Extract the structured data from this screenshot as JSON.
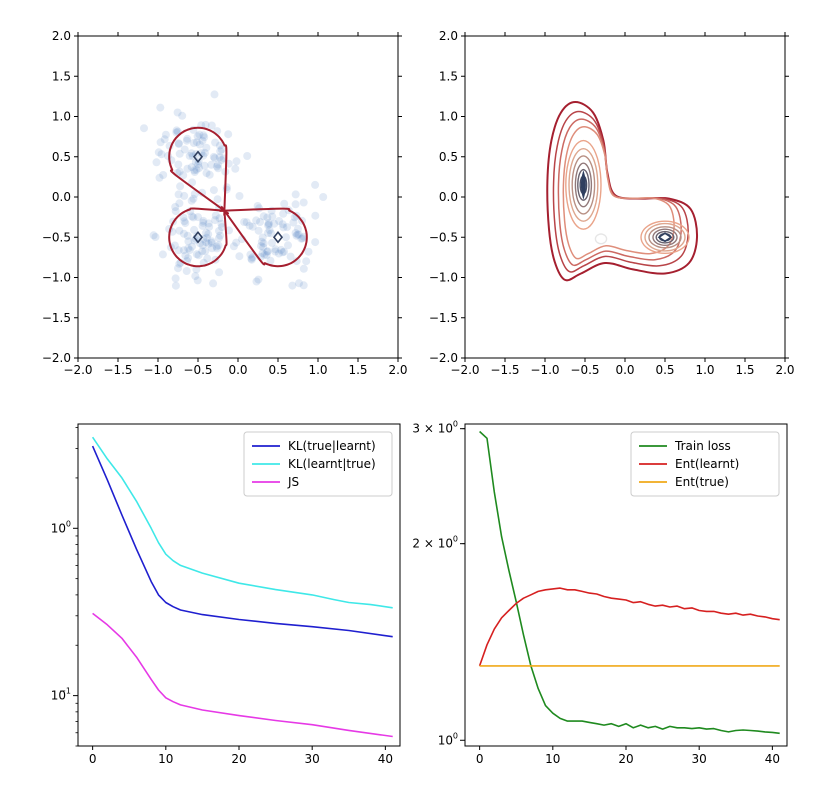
{
  "chart_data": [
    {
      "id": "density-true",
      "type": "scatter",
      "title": "",
      "xlabel": "",
      "ylabel": "",
      "xlim": [
        -2.0,
        2.0
      ],
      "ylim": [
        -2.0,
        2.0
      ],
      "xticks": [
        "−2.0",
        "−1.5",
        "−1.0",
        "−0.5",
        "0.0",
        "0.5",
        "1.0",
        "1.5",
        "2.0"
      ],
      "yticks": [
        "−2.0",
        "−1.5",
        "−1.0",
        "−0.5",
        "0.0",
        "0.5",
        "1.0",
        "1.5",
        "2.0"
      ],
      "mixture_components": [
        {
          "center": [
            -0.5,
            0.5
          ],
          "sigma": 0.18
        },
        {
          "center": [
            -0.5,
            -0.5
          ],
          "sigma": 0.18
        },
        {
          "center": [
            0.5,
            -0.5
          ],
          "sigma": 0.18
        }
      ],
      "samples_color": "#4a7fbf",
      "contour_colors": {
        "low": "#a51f2f",
        "mid": "#f2b394",
        "high": "#2f3f5f"
      }
    },
    {
      "id": "density-learnt",
      "type": "heatmap",
      "title": "",
      "xlabel": "",
      "ylabel": "",
      "xlim": [
        -2.0,
        2.0
      ],
      "ylim": [
        -2.0,
        2.0
      ],
      "xticks": [
        "−2.0",
        "−1.5",
        "−1.0",
        "−0.5",
        "0.0",
        "0.5",
        "1.0",
        "1.5",
        "2.0"
      ],
      "yticks": [
        "−2.0",
        "−1.5",
        "−1.0",
        "−0.5",
        "0.0",
        "0.5",
        "1.0",
        "1.5",
        "2.0"
      ],
      "modes": [
        {
          "center": [
            -0.52,
            0.15
          ],
          "note": "elongated vertical mode"
        },
        {
          "center": [
            0.5,
            -0.5
          ],
          "note": "round mode"
        }
      ],
      "contour_colors": {
        "low": "#a51f2f",
        "mid": "#f2b394",
        "high": "#2f3f5f"
      }
    },
    {
      "id": "divergences",
      "type": "line",
      "yscale": "log",
      "title": "",
      "xlabel": "",
      "ylabel": "",
      "xlim": [
        -2,
        42
      ],
      "ylim": [
        0.05,
        4.2
      ],
      "xticks": [
        "0",
        "10",
        "20",
        "30",
        "40"
      ],
      "yticks": [
        {
          "label": "10",
          "exp": "0",
          "value": 1.0
        },
        {
          "label": "10",
          "exp": "−1",
          "value": 0.1
        }
      ],
      "legend_position": "top-right",
      "series": [
        {
          "name": "KL(true|learnt)",
          "color": "#1f1fcf",
          "x": [
            0,
            2,
            4,
            6,
            8,
            9,
            10,
            11,
            12,
            15,
            20,
            25,
            30,
            35,
            41
          ],
          "y": [
            3.1,
            1.95,
            1.2,
            0.75,
            0.48,
            0.4,
            0.36,
            0.34,
            0.325,
            0.305,
            0.285,
            0.27,
            0.258,
            0.245,
            0.225
          ]
        },
        {
          "name": "KL(learnt|true)",
          "color": "#3fe8e8",
          "x": [
            0,
            2,
            4,
            6,
            8,
            9,
            10,
            11,
            12,
            15,
            20,
            25,
            30,
            33,
            35,
            38,
            41
          ],
          "y": [
            3.5,
            2.6,
            2.0,
            1.45,
            1.0,
            0.82,
            0.7,
            0.64,
            0.6,
            0.54,
            0.47,
            0.43,
            0.4,
            0.375,
            0.36,
            0.35,
            0.335
          ]
        },
        {
          "name": "JS",
          "color": "#e639e6",
          "x": [
            0,
            2,
            4,
            6,
            8,
            9,
            10,
            11,
            12,
            15,
            20,
            25,
            30,
            35,
            41
          ],
          "y": [
            0.31,
            0.265,
            0.22,
            0.17,
            0.125,
            0.108,
            0.097,
            0.092,
            0.088,
            0.082,
            0.076,
            0.071,
            0.067,
            0.062,
            0.057
          ]
        }
      ]
    },
    {
      "id": "loss-entropy",
      "type": "line",
      "yscale": "log",
      "title": "",
      "xlabel": "",
      "ylabel": "",
      "xlim": [
        -2,
        42
      ],
      "ylim": [
        0.98,
        3.05
      ],
      "xticks": [
        "0",
        "10",
        "20",
        "30",
        "40"
      ],
      "yticks": [
        {
          "label": "3 × 10",
          "exp": "0",
          "value": 3.0
        },
        {
          "label": "2 × 10",
          "exp": "0",
          "value": 2.0
        },
        {
          "label": "10",
          "exp": "0",
          "value": 1.0
        }
      ],
      "legend_position": "top-right",
      "series": [
        {
          "name": "Train loss",
          "color": "#1f8a1f",
          "x": [
            0,
            1,
            2,
            3,
            4,
            5,
            6,
            7,
            8,
            9,
            10,
            11,
            12,
            13,
            14,
            15,
            16,
            17,
            18,
            19,
            20,
            21,
            22,
            23,
            24,
            25,
            26,
            27,
            28,
            29,
            30,
            31,
            32,
            33,
            34,
            35,
            36,
            37,
            38,
            39,
            40,
            41
          ],
          "y": [
            2.97,
            2.9,
            2.4,
            2.05,
            1.82,
            1.63,
            1.45,
            1.3,
            1.2,
            1.13,
            1.1,
            1.08,
            1.07,
            1.07,
            1.07,
            1.065,
            1.06,
            1.055,
            1.06,
            1.05,
            1.06,
            1.045,
            1.055,
            1.045,
            1.05,
            1.04,
            1.05,
            1.045,
            1.045,
            1.042,
            1.045,
            1.04,
            1.042,
            1.035,
            1.03,
            1.035,
            1.037,
            1.035,
            1.033,
            1.03,
            1.028,
            1.025
          ]
        },
        {
          "name": "Ent(learnt)",
          "color": "#d62020",
          "x": [
            0,
            1,
            2,
            3,
            4,
            5,
            6,
            7,
            8,
            9,
            10,
            11,
            12,
            13,
            14,
            15,
            16,
            17,
            18,
            19,
            20,
            21,
            22,
            23,
            24,
            25,
            26,
            27,
            28,
            29,
            30,
            31,
            32,
            33,
            34,
            35,
            36,
            37,
            38,
            39,
            40,
            41
          ],
          "y": [
            1.3,
            1.4,
            1.48,
            1.54,
            1.58,
            1.62,
            1.65,
            1.67,
            1.69,
            1.7,
            1.705,
            1.71,
            1.7,
            1.7,
            1.69,
            1.68,
            1.675,
            1.66,
            1.65,
            1.645,
            1.64,
            1.625,
            1.63,
            1.615,
            1.605,
            1.61,
            1.6,
            1.605,
            1.59,
            1.595,
            1.58,
            1.575,
            1.575,
            1.565,
            1.56,
            1.565,
            1.555,
            1.56,
            1.55,
            1.545,
            1.535,
            1.53
          ]
        },
        {
          "name": "Ent(true)",
          "color": "#f0a91a",
          "x": [
            0,
            41
          ],
          "y": [
            1.3,
            1.3
          ]
        }
      ]
    }
  ]
}
